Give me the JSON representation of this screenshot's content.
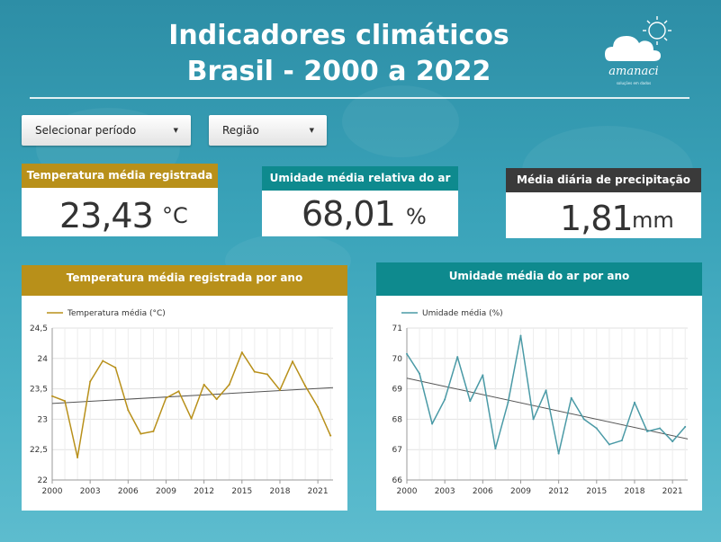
{
  "header": {
    "title_line1": "Indicadores climáticos",
    "title_line2": "Brasil - 2000 a 2022",
    "logo_text": "amanaci",
    "logo_tagline": "soluções em dados"
  },
  "filters": {
    "period_label": "Selecionar período",
    "region_label": "Região"
  },
  "colors": {
    "temperature": "#b8901a",
    "humidity": "#0e8a8e",
    "precipitation": "#3a3a3a",
    "trend": "#555555"
  },
  "kpis": {
    "temperature": {
      "label": "Temperatura média registrada",
      "value": "23,43",
      "unit": "°C"
    },
    "humidity": {
      "label": "Umidade média relativa do ar",
      "value": "68,01",
      "unit": "%"
    },
    "precipitation": {
      "label": "Média diária de precipitação",
      "value": "1,81",
      "unit": "mm"
    }
  },
  "chart_data": [
    {
      "type": "line",
      "title": "Temperatura média registrada por ano",
      "x": [
        2000,
        2001,
        2002,
        2003,
        2004,
        2005,
        2006,
        2007,
        2008,
        2009,
        2010,
        2011,
        2012,
        2013,
        2014,
        2015,
        2016,
        2017,
        2018,
        2019,
        2020,
        2021,
        2022
      ],
      "series": [
        {
          "name": "Temperatura média (°C)",
          "values": [
            23.38,
            23.3,
            22.37,
            23.62,
            23.96,
            23.85,
            23.15,
            22.76,
            22.8,
            23.35,
            23.46,
            23.01,
            23.57,
            23.33,
            23.57,
            24.1,
            23.78,
            23.74,
            23.48,
            23.95,
            23.55,
            23.2,
            22.73
          ]
        }
      ],
      "trendline": {
        "start": 23.26,
        "end": 23.52
      },
      "xlim": [
        2000,
        2022.2
      ],
      "ylim": [
        22,
        24.5
      ],
      "xticks": [
        "2000",
        "2003",
        "2006",
        "2009",
        "2012",
        "2015",
        "2018",
        "2021"
      ],
      "yticks": [
        "22",
        "22,5",
        "23",
        "23,5",
        "24",
        "24,5"
      ],
      "grid": true,
      "legend": "top-left"
    },
    {
      "type": "line",
      "title": "Umidade média do ar por ano",
      "x": [
        2000,
        2001,
        2002,
        2003,
        2004,
        2005,
        2006,
        2007,
        2008,
        2009,
        2010,
        2011,
        2012,
        2013,
        2014,
        2015,
        2016,
        2017,
        2018,
        2019,
        2020,
        2021,
        2022
      ],
      "series": [
        {
          "name": "Umidade média (%)",
          "values": [
            70.15,
            69.5,
            67.85,
            68.65,
            70.05,
            68.6,
            69.45,
            67.03,
            68.55,
            70.75,
            68.0,
            68.95,
            66.87,
            68.7,
            68.0,
            67.7,
            67.17,
            67.3,
            68.55,
            67.6,
            67.7,
            67.27,
            67.75
          ]
        }
      ],
      "trendline": {
        "start": 69.35,
        "end": 67.35
      },
      "xlim": [
        2000,
        2022.2
      ],
      "ylim": [
        66,
        71
      ],
      "xticks": [
        "2000",
        "2003",
        "2006",
        "2009",
        "2012",
        "2015",
        "2018",
        "2021"
      ],
      "yticks": [
        "66",
        "67",
        "68",
        "69",
        "70",
        "71"
      ],
      "grid": true,
      "legend": "top-left"
    }
  ]
}
